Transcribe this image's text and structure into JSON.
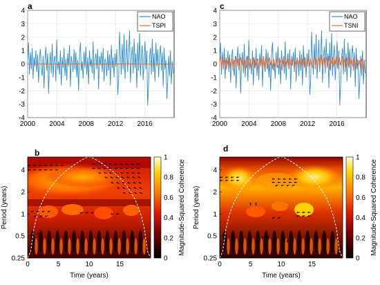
{
  "panel_letters": {
    "a": "a",
    "b": "b",
    "c": "c",
    "d": "d"
  },
  "colorbar": {
    "label": "Magnitude-Squared Coherence",
    "ticks": [
      "0",
      "0.2",
      "0.4",
      "0.6",
      "0.8",
      "1"
    ]
  },
  "colors": {
    "nao": "#2b8cd6",
    "index": "#e8692a"
  },
  "chart_data": [
    {
      "type": "line",
      "panel": "a",
      "x_ticks": [
        "2000",
        "2004",
        "2008",
        "2012",
        "2016"
      ],
      "y_ticks": [
        "-4",
        "-3",
        "-2",
        "-1",
        "0",
        "1",
        "2",
        "3",
        "4"
      ],
      "xlim": [
        2000,
        2020
      ],
      "ylim": [
        -4,
        4
      ],
      "legend": "top-right",
      "series": [
        {
          "name": "NAO",
          "color": "#2b8cd6",
          "values": [
            0.3,
            1.6,
            -0.8,
            0.9,
            -0.4,
            1.2,
            -1.1,
            0.5,
            -0.2,
            1.0,
            -0.6,
            0.7,
            -1.4,
            0.4,
            1.1,
            -0.3,
            -0.9,
            0.6,
            -1.8,
            0.2,
            1.3,
            -0.5,
            0.8,
            -2.2,
            -0.1,
            0.9,
            -0.7,
            1.5,
            -1.0,
            0.3,
            0.6,
            -1.3,
            1.8,
            -0.4,
            0.2,
            -0.8,
            1.0,
            -1.6,
            0.5,
            -0.3,
            1.2,
            -0.9,
            0.4,
            -1.2,
            0.8,
            -0.2,
            1.4,
            -1.7,
            0.6,
            0.1,
            -0.6,
            1.1,
            -0.4,
            0.9,
            -1.0,
            0.3,
            -2.0,
            0.7,
            1.6,
            -0.5,
            0.2,
            -1.1,
            0.9,
            -0.3,
            1.3,
            -0.8,
            0.5,
            -1.5,
            1.0,
            -0.2,
            0.4,
            -0.7,
            1.7,
            -1.2,
            0.3,
            0.8,
            -0.4,
            1.1,
            -1.9,
            0.6,
            -0.1,
            0.9,
            -0.6,
            1.2,
            -1.3,
            0.4,
            0.2,
            -0.9,
            1.0,
            -0.5,
            0.7,
            -1.6,
            1.4,
            -0.3,
            0.5,
            -1.0,
            0.8,
            -0.2,
            1.1,
            -2.3,
            -1.2,
            2.4,
            0.6,
            -0.8,
            1.5,
            -0.4,
            2.2,
            -1.1,
            0.3,
            1.8,
            -0.6,
            0.9,
            2.5,
            -1.4,
            0.4,
            1.3,
            -0.7,
            1.9,
            -0.3,
            0.8,
            -1.8,
            1.6,
            -0.5,
            2.3,
            -0.9,
            0.6,
            1.4,
            -1.2,
            0.2,
            1.7,
            -0.4,
            1.0,
            -3.1,
            -1.5,
            0.5,
            1.2,
            -0.8,
            1.9,
            -0.6,
            0.8,
            -1.3,
            1.6,
            -0.2,
            1.1,
            -1.0,
            0.7,
            1.4,
            -0.5,
            0.9,
            -1.7,
            1.2,
            -0.4,
            0.3,
            -2.6,
            -1.2,
            0.6,
            -0.9,
            1.0,
            -1.5,
            0.2,
            -0.7
          ]
        },
        {
          "name": "TSPI",
          "color": "#e8692a",
          "constant": 0.0
        }
      ]
    },
    {
      "type": "line",
      "panel": "c",
      "x_ticks": [
        "2000",
        "2004",
        "2008",
        "2012",
        "2016"
      ],
      "y_ticks": [
        "-4",
        "-3",
        "-2",
        "-1",
        "0",
        "1",
        "2",
        "3",
        "4"
      ],
      "xlim": [
        2000,
        2020
      ],
      "ylim": [
        -4,
        4
      ],
      "legend": "top-right",
      "series": [
        {
          "name": "NAO",
          "color": "#2b8cd6",
          "same_as": "a"
        },
        {
          "name": "TSNI",
          "color": "#e8692a",
          "values": [
            0.1,
            0.6,
            -0.2,
            0.4,
            -0.3,
            0.5,
            0.1,
            -0.4,
            0.3,
            -0.1,
            0.5,
            -0.3,
            0.2,
            0.4,
            -0.5,
            0.3,
            0.0,
            0.6,
            -0.2,
            0.4,
            -0.4,
            0.2,
            0.5,
            -0.1,
            0.3,
            -0.5,
            0.4,
            0.1,
            -0.3,
            0.6,
            -0.2,
            0.2,
            0.4,
            -0.4,
            0.1,
            0.5,
            -0.3,
            0.3,
            -0.1,
            0.4,
            0.2,
            -0.5,
            0.3,
            0.0,
            0.5,
            -0.2,
            0.4,
            -0.4,
            0.6,
            0.1,
            -0.3,
            0.2,
            0.5,
            -0.1,
            0.3,
            -0.4,
            0.4,
            0.2,
            -0.2,
            0.5,
            0.0,
            -0.3,
            0.4,
            0.1,
            0.3,
            -0.5,
            0.2,
            0.6,
            -0.2,
            0.3,
            -0.1,
            0.4,
            -0.3,
            0.5,
            0.1,
            -0.2,
            0.3,
            0.4,
            -0.4,
            0.2,
            0.0,
            0.5,
            -0.3,
            0.3,
            0.1,
            -0.1,
            0.4,
            -0.2,
            0.6,
            0.2,
            -0.4,
            0.3,
            0.0,
            0.5,
            -0.2,
            0.4,
            0.1,
            -0.3,
            0.3,
            0.6,
            -0.1,
            0.4,
            -0.5,
            0.2,
            0.5,
            0.0,
            0.7,
            -0.2,
            0.3,
            0.4,
            -0.3,
            0.5,
            0.2,
            -0.1,
            0.6,
            -0.4,
            0.3,
            0.1,
            0.5,
            -0.2,
            0.4,
            0.0,
            0.7,
            -0.3,
            0.2,
            0.5,
            -0.1,
            0.3,
            0.6,
            -0.4,
            0.2,
            0.4,
            -0.2,
            0.5,
            0.1,
            -0.3,
            0.6,
            0.0,
            0.3,
            -0.2,
            0.4,
            0.2,
            -0.5,
            0.5,
            0.1,
            -0.1,
            0.3,
            -0.3,
            0.4,
            0.0,
            -0.6,
            0.3,
            0.2
          ]
        }
      ]
    },
    {
      "type": "heatmap",
      "panel": "b",
      "xlabel": "Time (years)",
      "ylabel": "Period (years)",
      "x_ticks": [
        "0",
        "5",
        "10",
        "15"
      ],
      "y_ticks": [
        "0.25",
        "0.5",
        "1",
        "2",
        "4"
      ],
      "xlim": [
        0,
        20
      ],
      "y_scale": "log2",
      "ylim": [
        0.25,
        6
      ],
      "zlim": [
        0,
        1
      ],
      "dominant_coherence": "high (0.6-0.9) at periods of about 2-4 years across roughly 5-15 years"
    },
    {
      "type": "heatmap",
      "panel": "d",
      "xlabel": "Time (years)",
      "ylabel": "Period (years)",
      "x_ticks": [
        "0",
        "5",
        "10",
        "15"
      ],
      "y_ticks": [
        "0.25",
        "0.5",
        "1",
        "2",
        "4"
      ],
      "xlim": [
        0,
        20
      ],
      "y_scale": "log2",
      "ylim": [
        0.25,
        6
      ],
      "zlim": [
        0,
        1
      ],
      "dominant_coherence": "high (0.8-1) at periods of about 4-6 years across the full record"
    }
  ]
}
